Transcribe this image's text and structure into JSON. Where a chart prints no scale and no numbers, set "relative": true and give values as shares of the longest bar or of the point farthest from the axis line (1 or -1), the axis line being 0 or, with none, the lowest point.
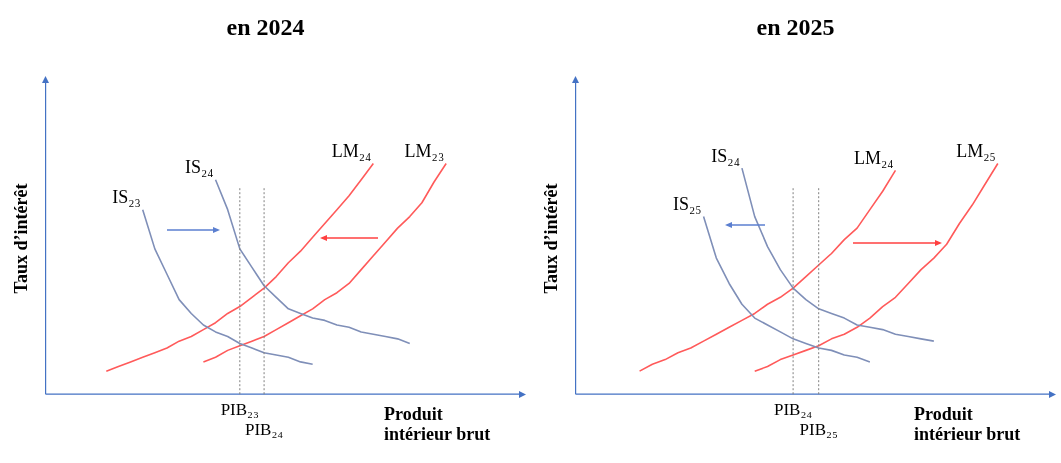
{
  "chart_data": [
    {
      "type": "line",
      "title": "en 2024",
      "xlabel": "Produit intérieur brut",
      "ylabel": "Taux d’intérêt",
      "relative": true,
      "tick_labels": "x",
      "marker": "none",
      "line_style": "solid",
      "categories": [
        null,
        null,
        null,
        null,
        null,
        null,
        null,
        null,
        null,
        null,
        null,
        null,
        null,
        null,
        null,
        null,
        "PIB₂₃",
        null,
        "PIB₂₄",
        null,
        null,
        null,
        null,
        null,
        null,
        null,
        null,
        null,
        null,
        null,
        null,
        null,
        null,
        null,
        null,
        null,
        null,
        null,
        null,
        null
      ],
      "series": [
        {
          "name": "IS₂₃",
          "color": "#7f8fb8",
          "values": [
            null,
            null,
            null,
            null,
            null,
            null,
            null,
            null,
            0.8,
            0.63,
            0.52,
            0.41,
            0.35,
            0.3,
            0.27,
            0.25,
            0.22,
            0.2,
            0.18,
            0.17,
            0.16,
            0.14,
            0.13,
            null,
            null,
            null,
            null,
            null,
            null,
            null,
            null,
            null,
            null,
            null,
            null,
            null,
            null,
            null,
            null,
            null
          ]
        },
        {
          "name": "IS₂₄",
          "color": "#7f8fb8",
          "values": [
            null,
            null,
            null,
            null,
            null,
            null,
            null,
            null,
            null,
            null,
            null,
            null,
            null,
            null,
            0.93,
            0.8,
            0.63,
            0.55,
            0.47,
            0.42,
            0.37,
            0.35,
            0.33,
            0.32,
            0.3,
            0.29,
            0.27,
            0.26,
            0.25,
            0.24,
            0.22,
            null,
            null,
            null,
            null,
            null,
            null,
            null,
            null,
            null
          ]
        },
        {
          "name": "LM₂₄",
          "color": "#ff5a5a",
          "values": [
            null,
            null,
            null,
            null,
            null,
            0.1,
            0.12,
            0.14,
            0.16,
            0.18,
            0.2,
            0.23,
            0.25,
            0.28,
            0.31,
            0.35,
            0.38,
            0.42,
            0.46,
            0.51,
            0.57,
            0.62,
            0.68,
            0.74,
            0.8,
            0.86,
            0.93,
            1,
            null,
            null,
            null,
            null,
            null,
            null,
            null,
            null,
            null,
            null,
            null,
            null
          ]
        },
        {
          "name": "LM₂₃",
          "color": "#ff5a5a",
          "values": [
            null,
            null,
            null,
            null,
            null,
            null,
            null,
            null,
            null,
            null,
            null,
            null,
            null,
            0.14,
            0.16,
            0.19,
            0.21,
            0.23,
            0.25,
            0.28,
            0.31,
            0.34,
            0.37,
            0.41,
            0.44,
            0.48,
            0.54,
            0.6,
            0.66,
            0.72,
            0.77,
            0.83,
            0.92,
            1,
            null,
            null,
            null,
            null,
            null,
            null
          ]
        }
      ],
      "ref_lines": [
        {
          "axis": "x",
          "value": "PIB₂₃",
          "color": "#808080",
          "line_style": "dotted"
        },
        {
          "axis": "x",
          "value": "PIB₂₄",
          "color": "#808080",
          "line_style": "dotted"
        }
      ]
    },
    {
      "type": "line",
      "title": "en 2025",
      "xlabel": "Produit intérieur brut",
      "ylabel": "Taux d’intérêt",
      "relative": true,
      "tick_labels": "x",
      "marker": "none",
      "line_style": "solid",
      "categories": [
        null,
        null,
        null,
        null,
        null,
        null,
        null,
        null,
        null,
        null,
        null,
        null,
        null,
        null,
        null,
        null,
        null,
        "PIB₂₄",
        null,
        "PIB₂₅",
        null,
        null,
        null,
        null,
        null,
        null,
        null,
        null,
        null,
        null,
        null,
        null,
        null,
        null,
        null,
        null,
        null,
        null
      ],
      "series": [
        {
          "name": "IS₂₄",
          "color": "#7f8fb8",
          "values": [
            null,
            null,
            null,
            null,
            null,
            null,
            null,
            null,
            null,
            null,
            null,
            null,
            null,
            0.98,
            0.77,
            0.64,
            0.54,
            0.46,
            0.41,
            0.37,
            0.35,
            0.33,
            0.3,
            0.29,
            0.28,
            0.26,
            0.25,
            0.24,
            0.23,
            null,
            null,
            null,
            null,
            null,
            null,
            null,
            null,
            null
          ]
        },
        {
          "name": "IS₂₅",
          "color": "#7f8fb8",
          "values": [
            null,
            null,
            null,
            null,
            null,
            null,
            null,
            null,
            null,
            null,
            0.77,
            0.59,
            0.48,
            0.39,
            0.33,
            0.3,
            0.27,
            0.24,
            0.22,
            0.2,
            0.19,
            0.17,
            0.16,
            0.14,
            null,
            null,
            null,
            null,
            null,
            null,
            null,
            null,
            null,
            null,
            null,
            null,
            null,
            null
          ]
        },
        {
          "name": "LM₂₄",
          "color": "#ff5a5a",
          "values": [
            null,
            null,
            null,
            null,
            null,
            0.1,
            0.13,
            0.15,
            0.18,
            0.2,
            0.23,
            0.26,
            0.29,
            0.32,
            0.35,
            0.39,
            0.42,
            0.46,
            0.51,
            0.56,
            0.61,
            0.67,
            0.72,
            0.8,
            0.88,
            0.97,
            null,
            null,
            null,
            null,
            null,
            null,
            null,
            null,
            null,
            null,
            null,
            null
          ]
        },
        {
          "name": "LM₂₅",
          "color": "#ff5a5a",
          "values": [
            null,
            null,
            null,
            null,
            null,
            null,
            null,
            null,
            null,
            null,
            null,
            null,
            null,
            null,
            0.1,
            0.12,
            0.15,
            0.17,
            0.19,
            0.21,
            0.24,
            0.26,
            0.29,
            0.33,
            0.38,
            0.42,
            0.48,
            0.54,
            0.59,
            0.65,
            0.74,
            0.82,
            0.91,
            1,
            null,
            null,
            null,
            null
          ]
        }
      ],
      "ref_lines": [
        {
          "axis": "x",
          "value": "PIB₂₄",
          "color": "#808080",
          "line_style": "dotted"
        },
        {
          "axis": "x",
          "value": "PIB₂₅",
          "color": "#808080",
          "line_style": "dotted"
        }
      ]
    }
  ]
}
